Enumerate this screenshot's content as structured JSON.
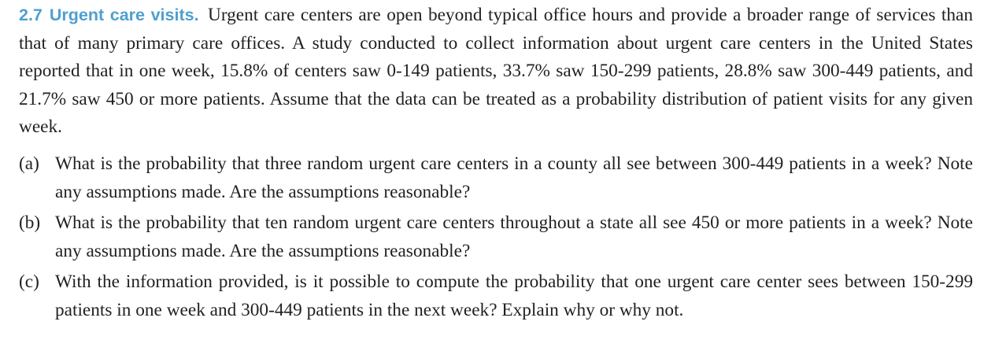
{
  "exercise": {
    "number": "2.7",
    "title": "Urgent care visits.",
    "intro": "Urgent care centers are open beyond typical office hours and provide a broader range of services than that of many primary care offices. A study conducted to collect information about urgent care centers in the United States reported that in one week, 15.8% of centers saw 0-149 patients, 33.7% saw 150-299 patients, 28.8% saw 300-449 patients, and 21.7% saw 450 or more patients. Assume that the data can be treated as a probability distribution of patient visits for any given week."
  },
  "parts": [
    {
      "label": "(a)",
      "text": "What is the probability that three random urgent care centers in a county all see between 300-449 patients in a week? Note any assumptions made. Are the assumptions reasonable?"
    },
    {
      "label": "(b)",
      "text": "What is the probability that ten random urgent care centers throughout a state all see 450 or more patients in a week? Note any assumptions made. Are the assumptions reasonable?"
    },
    {
      "label": "(c)",
      "text": "With the information provided, is it possible to compute the probability that one urgent care center sees between 150-299 patients in one week and 300-449 patients in the next week? Explain why or why not."
    }
  ]
}
